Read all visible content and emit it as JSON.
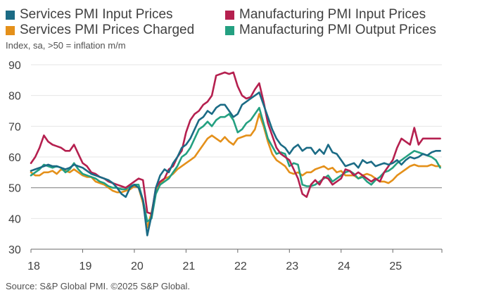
{
  "legend": {
    "items": [
      {
        "label": "Services PMI Input Prices",
        "color": "#1b6b85"
      },
      {
        "label": "Manufacturing PMI Input Prices",
        "color": "#b5204f"
      },
      {
        "label": "Services PMI Prices Charged",
        "color": "#e4901a"
      },
      {
        "label": "Manufacturing PMI Output Prices",
        "color": "#24a081"
      }
    ]
  },
  "subtitle": "Index, sa, >50 = inflation m/m",
  "source": "Source: S&P Global PMI. ©2025 S&P Global.",
  "chart_data": {
    "type": "line",
    "title": "",
    "subtitle": "Index, sa, >50 = inflation m/m",
    "ylim": [
      30,
      90
    ],
    "yticks": [
      30,
      40,
      50,
      60,
      70,
      80,
      90
    ],
    "xlim": [
      2018,
      2025.95
    ],
    "xticks": [
      {
        "value": 2018,
        "label": "18"
      },
      {
        "value": 2019,
        "label": "19"
      },
      {
        "value": 2020,
        "label": "20"
      },
      {
        "value": 2021,
        "label": "21"
      },
      {
        "value": 2022,
        "label": "22"
      },
      {
        "value": 2023,
        "label": "23"
      },
      {
        "value": 2024,
        "label": "24"
      },
      {
        "value": 2025,
        "label": "25"
      }
    ],
    "reference_line": 50,
    "grid": "horizontal",
    "legend_position": "top",
    "x_start": "2018-01",
    "x_frequency": "monthly",
    "series": [
      {
        "name": "Services PMI Input Prices",
        "color": "#1b6b85",
        "values": [
          55.5,
          56.0,
          56.5,
          57.0,
          57.5,
          57.0,
          57.0,
          56.5,
          56.0,
          56.5,
          57.5,
          57.0,
          56.5,
          55.5,
          54.5,
          54.0,
          53.5,
          53.0,
          52.5,
          51.5,
          50.0,
          48.0,
          47.0,
          50.0,
          51.0,
          50.0,
          46.0,
          34.5,
          41.0,
          50.0,
          54.0,
          56.0,
          55.0,
          58.0,
          60.0,
          63.0,
          64.0,
          66.0,
          69.0,
          72.0,
          73.0,
          75.0,
          74.0,
          76.0,
          77.0,
          77.0,
          75.0,
          73.0,
          74.0,
          77.0,
          78.0,
          79.0,
          80.0,
          81.0,
          77.0,
          73.0,
          69.0,
          66.0,
          64.0,
          63.0,
          61.0,
          63.0,
          64.0,
          62.0,
          63.0,
          63.0,
          61.0,
          62.5,
          61.0,
          64.0,
          61.5,
          61.0,
          59.0,
          57.0,
          57.5,
          58.0,
          56.5,
          59.0,
          58.0,
          58.5,
          57.0,
          57.5,
          58.0,
          57.5,
          58.0,
          59.0,
          57.5,
          59.0,
          60.0,
          59.5,
          60.0,
          61.0,
          60.5,
          61.5,
          62.0,
          62.0
        ]
      },
      {
        "name": "Manufacturing PMI Input Prices",
        "color": "#b5204f",
        "values": [
          58.0,
          60.0,
          63.0,
          67.0,
          65.0,
          64.0,
          63.5,
          63.0,
          62.0,
          62.0,
          64.0,
          61.0,
          58.0,
          57.0,
          55.0,
          54.5,
          53.5,
          53.0,
          52.0,
          51.5,
          51.0,
          50.5,
          50.0,
          51.0,
          52.0,
          53.0,
          52.5,
          42.0,
          41.5,
          50.0,
          52.0,
          53.0,
          56.0,
          57.0,
          60.0,
          62.0,
          68.0,
          72.0,
          74.0,
          75.0,
          77.0,
          78.0,
          80.0,
          86.5,
          87.0,
          87.5,
          87.0,
          87.5,
          83.0,
          80.0,
          79.0,
          79.5,
          82.0,
          84.0,
          78.0,
          71.0,
          67.0,
          63.0,
          61.0,
          60.0,
          59.0,
          56.0,
          53.0,
          48.0,
          47.0,
          51.0,
          52.5,
          51.0,
          53.5,
          53.0,
          51.0,
          52.0,
          53.0,
          56.0,
          55.5,
          54.0,
          55.0,
          54.0,
          53.0,
          52.0,
          53.0,
          52.0,
          55.0,
          57.0,
          59.0,
          63.0,
          66.0,
          65.0,
          64.0,
          69.5,
          64.0,
          66.0,
          66.0,
          66.0,
          66.0,
          66.0
        ]
      },
      {
        "name": "Services PMI Prices Charged",
        "color": "#e4901a",
        "values": [
          55.0,
          54.0,
          54.0,
          55.0,
          55.0,
          55.5,
          54.5,
          56.0,
          55.5,
          55.0,
          56.0,
          55.0,
          54.0,
          53.5,
          53.5,
          52.0,
          51.5,
          51.0,
          50.0,
          49.0,
          48.5,
          48.5,
          49.0,
          49.5,
          50.5,
          50.0,
          45.0,
          37.0,
          42.0,
          49.0,
          51.0,
          53.0,
          53.5,
          54.5,
          56.0,
          57.0,
          58.0,
          59.0,
          60.0,
          62.0,
          64.0,
          66.0,
          67.0,
          66.0,
          65.0,
          66.5,
          65.0,
          64.0,
          66.0,
          66.5,
          67.0,
          67.0,
          69.0,
          74.0,
          70.0,
          65.0,
          61.0,
          59.0,
          58.0,
          57.0,
          55.0,
          54.5,
          55.0,
          54.0,
          55.0,
          55.0,
          56.0,
          56.5,
          57.0,
          56.0,
          56.5,
          55.0,
          55.5,
          54.0,
          54.0,
          54.0,
          53.0,
          54.0,
          54.5,
          54.0,
          53.0,
          52.0,
          52.0,
          51.5,
          52.5,
          54.0,
          55.0,
          56.0,
          57.0,
          57.5,
          57.0,
          57.0,
          57.0,
          57.5,
          57.0,
          57.0
        ]
      },
      {
        "name": "Manufacturing PMI Output Prices",
        "color": "#24a081",
        "values": [
          54.0,
          55.0,
          56.0,
          57.5,
          57.0,
          56.5,
          57.0,
          56.5,
          55.0,
          56.0,
          58.0,
          56.0,
          54.5,
          54.0,
          53.5,
          53.0,
          52.0,
          51.5,
          50.5,
          50.0,
          50.0,
          49.5,
          49.5,
          50.5,
          51.0,
          51.0,
          46.0,
          39.0,
          40.0,
          48.0,
          51.0,
          52.0,
          53.0,
          55.0,
          57.0,
          60.0,
          61.0,
          63.0,
          66.0,
          69.0,
          70.0,
          71.5,
          70.0,
          72.0,
          73.0,
          73.0,
          74.0,
          72.0,
          68.0,
          69.0,
          71.0,
          72.0,
          74.0,
          76.0,
          71.0,
          66.0,
          63.5,
          61.0,
          61.5,
          61.0,
          57.0,
          58.0,
          57.5,
          51.0,
          50.5,
          50.5,
          51.0,
          52.0,
          53.0,
          54.0,
          52.0,
          53.0,
          54.0,
          55.0,
          55.5,
          54.5,
          53.0,
          53.5,
          52.0,
          51.0,
          52.5,
          53.5,
          55.0,
          55.5,
          56.5,
          58.0,
          59.0,
          60.0,
          61.0,
          62.0,
          61.5,
          61.0,
          60.5,
          60.0,
          59.0,
          56.5
        ]
      }
    ]
  }
}
